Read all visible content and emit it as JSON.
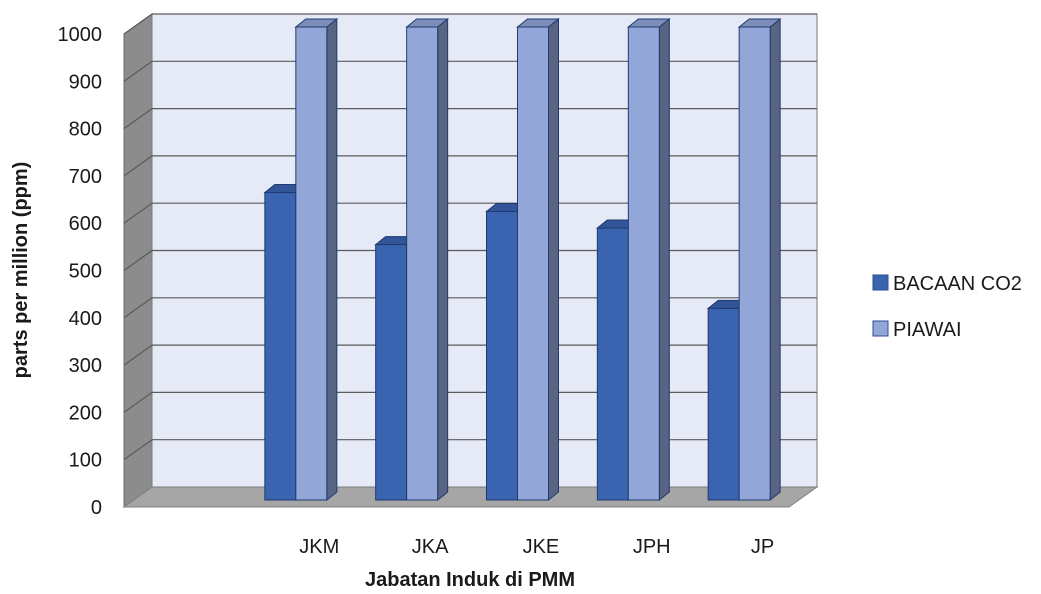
{
  "chart_data": {
    "type": "bar",
    "categories": [
      "JKM",
      "JKA",
      "JKE",
      "JPH",
      "JP"
    ],
    "series": [
      {
        "name": "BACAAN CO2",
        "values": [
          650,
          540,
          610,
          575,
          405
        ],
        "color": "#3A64B0"
      },
      {
        "name": "PIAWAI",
        "values": [
          1000,
          1000,
          1000,
          1000,
          1000
        ],
        "color": "#93A6D8"
      }
    ],
    "category_slots": 6,
    "occupied_slots": [
      1,
      2,
      3,
      4,
      5
    ],
    "yticks": [
      0,
      100,
      200,
      300,
      400,
      500,
      600,
      700,
      800,
      900,
      1000
    ],
    "ylim": [
      0,
      1000
    ],
    "xlabel": "Jabatan Induk di PMM",
    "ylabel": "parts per million (ppm)",
    "legend_position": "right",
    "grid": true,
    "style": "3d-clustered-column",
    "colors": {
      "back_wall": "#E6E9F6",
      "side_wall": "#8C8C8C",
      "floor": "#A6A6A6",
      "gridline": "#5A5A5A"
    }
  }
}
